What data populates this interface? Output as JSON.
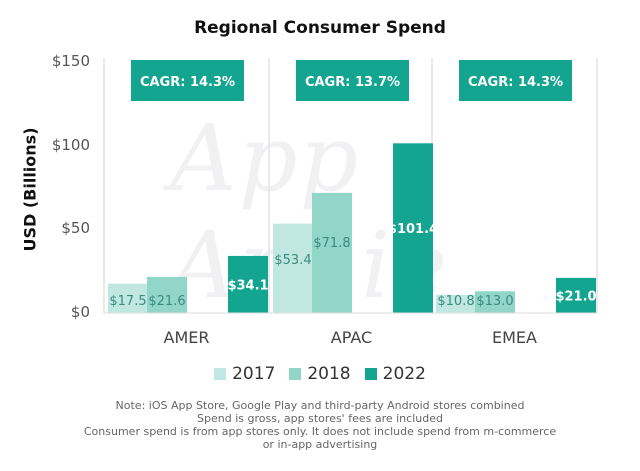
{
  "chart_data": {
    "type": "bar",
    "title": "Regional Consumer Spend",
    "ylabel": "USD (Billions)",
    "xlabel": "",
    "ylim": [
      0,
      150
    ],
    "yticks": [
      0,
      50,
      100,
      150
    ],
    "ytick_labels": [
      "$0",
      "$50",
      "$100",
      "$150"
    ],
    "categories": [
      "AMER",
      "APAC",
      "EMEA"
    ],
    "series": [
      {
        "name": "2017",
        "values": [
          17.5,
          53.4,
          10.8
        ],
        "labels": [
          "$17.5",
          "$53.4",
          "$10.8"
        ],
        "color": "#c0e7e1"
      },
      {
        "name": "2018",
        "values": [
          21.6,
          71.8,
          13.0
        ],
        "labels": [
          "$21.6",
          "$71.8",
          "$13.0"
        ],
        "color": "#92d6ca"
      },
      {
        "name": "2022",
        "values": [
          34.1,
          101.4,
          21.0
        ],
        "labels": [
          "$34.1",
          "$101.4",
          "$21.0"
        ],
        "color": "#13a58f"
      }
    ],
    "annotations": [
      "CAGR: 14.3%",
      "CAGR: 13.7%",
      "CAGR: 14.3%"
    ],
    "annotation_color": "#13a58f",
    "legend_position": "bottom",
    "grid": false
  },
  "watermark": "App Annie",
  "notes": [
    "Note: iOS App Store, Google Play and third-party Android stores combined",
    "Spend is gross, app stores' fees are included",
    "Consumer spend is from app stores only. It does not include spend from m-commerce",
    "or in-app advertising"
  ]
}
